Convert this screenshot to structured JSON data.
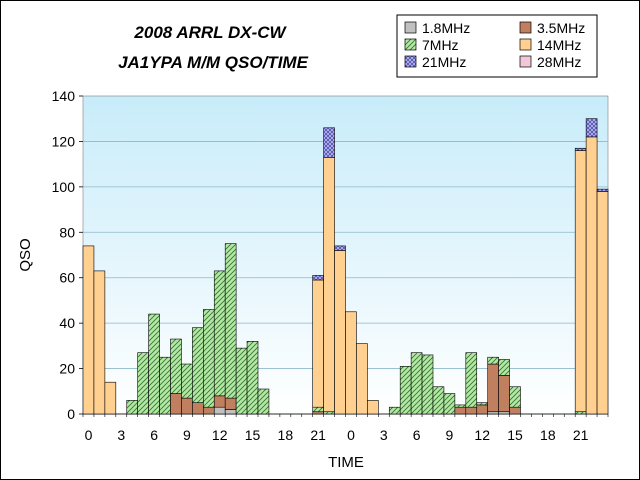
{
  "chart_data": {
    "type": "bar",
    "stacked": true,
    "title": "2008 ARRL DX-CW",
    "subtitle": "JA1YPA M/M  QSO/TIME",
    "xlabel": "TIME",
    "ylabel": "QSO",
    "ylim": [
      0,
      140
    ],
    "y_ticks": [
      0,
      20,
      40,
      60,
      80,
      100,
      120,
      140
    ],
    "grid": true,
    "legend_position": "top-right",
    "x_tick_labels": [
      "0",
      "3",
      "6",
      "9",
      "12",
      "15",
      "18",
      "21",
      "0",
      "3",
      "6",
      "9",
      "12",
      "15",
      "18",
      "21"
    ],
    "x_tick_hours": [
      0,
      3,
      6,
      9,
      12,
      15,
      18,
      21,
      24,
      27,
      30,
      33,
      36,
      39,
      42,
      45
    ],
    "hours": [
      0,
      1,
      2,
      3,
      4,
      5,
      6,
      7,
      8,
      9,
      10,
      11,
      12,
      13,
      14,
      15,
      16,
      17,
      18,
      19,
      20,
      21,
      22,
      23,
      24,
      25,
      26,
      27,
      28,
      29,
      30,
      31,
      32,
      33,
      34,
      35,
      36,
      37,
      38,
      39,
      40,
      41,
      42,
      43,
      44,
      45,
      46,
      47
    ],
    "series": [
      {
        "name": "1.8MHz",
        "color": "#c0c0c0",
        "pattern": "none",
        "values": [
          0,
          0,
          0,
          0,
          0,
          0,
          0,
          0,
          0,
          0,
          0,
          0,
          3,
          2,
          0,
          0,
          0,
          0,
          0,
          0,
          0,
          0,
          0,
          0,
          0,
          0,
          0,
          0,
          0,
          0,
          0,
          0,
          0,
          0,
          0,
          0,
          0,
          1,
          1,
          0,
          0,
          0,
          0,
          0,
          0,
          0,
          0,
          0
        ]
      },
      {
        "name": "3.5MHz",
        "color": "#c08060",
        "pattern": "none",
        "values": [
          0,
          0,
          0,
          0,
          0,
          0,
          0,
          0,
          9,
          7,
          5,
          3,
          5,
          5,
          0,
          0,
          0,
          0,
          0,
          0,
          0,
          1,
          0,
          0,
          0,
          0,
          0,
          0,
          0,
          0,
          0,
          0,
          0,
          0,
          3,
          3,
          4,
          21,
          16,
          3,
          0,
          0,
          0,
          0,
          0,
          0,
          0,
          0
        ]
      },
      {
        "name": "7MHz",
        "color": "#b0e0a0",
        "pattern": "diag",
        "values": [
          0,
          0,
          0,
          0,
          6,
          27,
          44,
          25,
          24,
          15,
          33,
          43,
          55,
          68,
          29,
          32,
          11,
          0,
          0,
          0,
          0,
          2,
          1,
          0,
          0,
          0,
          0,
          0,
          3,
          21,
          27,
          26,
          12,
          9,
          1,
          24,
          1,
          3,
          7,
          9,
          0,
          0,
          0,
          0,
          0,
          1,
          0,
          0
        ]
      },
      {
        "name": "14MHz",
        "color": "#ffd090",
        "pattern": "none",
        "values": [
          74,
          63,
          14,
          0,
          0,
          0,
          0,
          0,
          0,
          0,
          0,
          0,
          0,
          0,
          0,
          0,
          0,
          0,
          0,
          0,
          0,
          56,
          112,
          72,
          45,
          31,
          6,
          0,
          0,
          0,
          0,
          0,
          0,
          0,
          0,
          0,
          0,
          0,
          0,
          0,
          0,
          0,
          0,
          0,
          0,
          115,
          122,
          98
        ]
      },
      {
        "name": "21MHz",
        "color": "#a0a0f0",
        "pattern": "cross",
        "values": [
          0,
          0,
          0,
          0,
          0,
          0,
          0,
          0,
          0,
          0,
          0,
          0,
          0,
          0,
          0,
          0,
          0,
          0,
          0,
          0,
          0,
          2,
          13,
          2,
          0,
          0,
          0,
          0,
          0,
          0,
          0,
          0,
          0,
          0,
          0,
          0,
          0,
          0,
          0,
          0,
          0,
          0,
          0,
          0,
          0,
          1,
          8,
          1
        ]
      },
      {
        "name": "28MHz",
        "color": "#f0c8d8",
        "pattern": "none",
        "values": [
          0,
          0,
          0,
          0,
          0,
          0,
          0,
          0,
          0,
          0,
          0,
          0,
          0,
          0,
          0,
          0,
          0,
          0,
          0,
          0,
          0,
          0,
          0,
          0,
          0,
          0,
          0,
          0,
          0,
          0,
          0,
          0,
          0,
          0,
          0,
          0,
          0,
          0,
          0,
          0,
          0,
          0,
          0,
          0,
          0,
          0,
          0,
          0
        ]
      }
    ]
  }
}
